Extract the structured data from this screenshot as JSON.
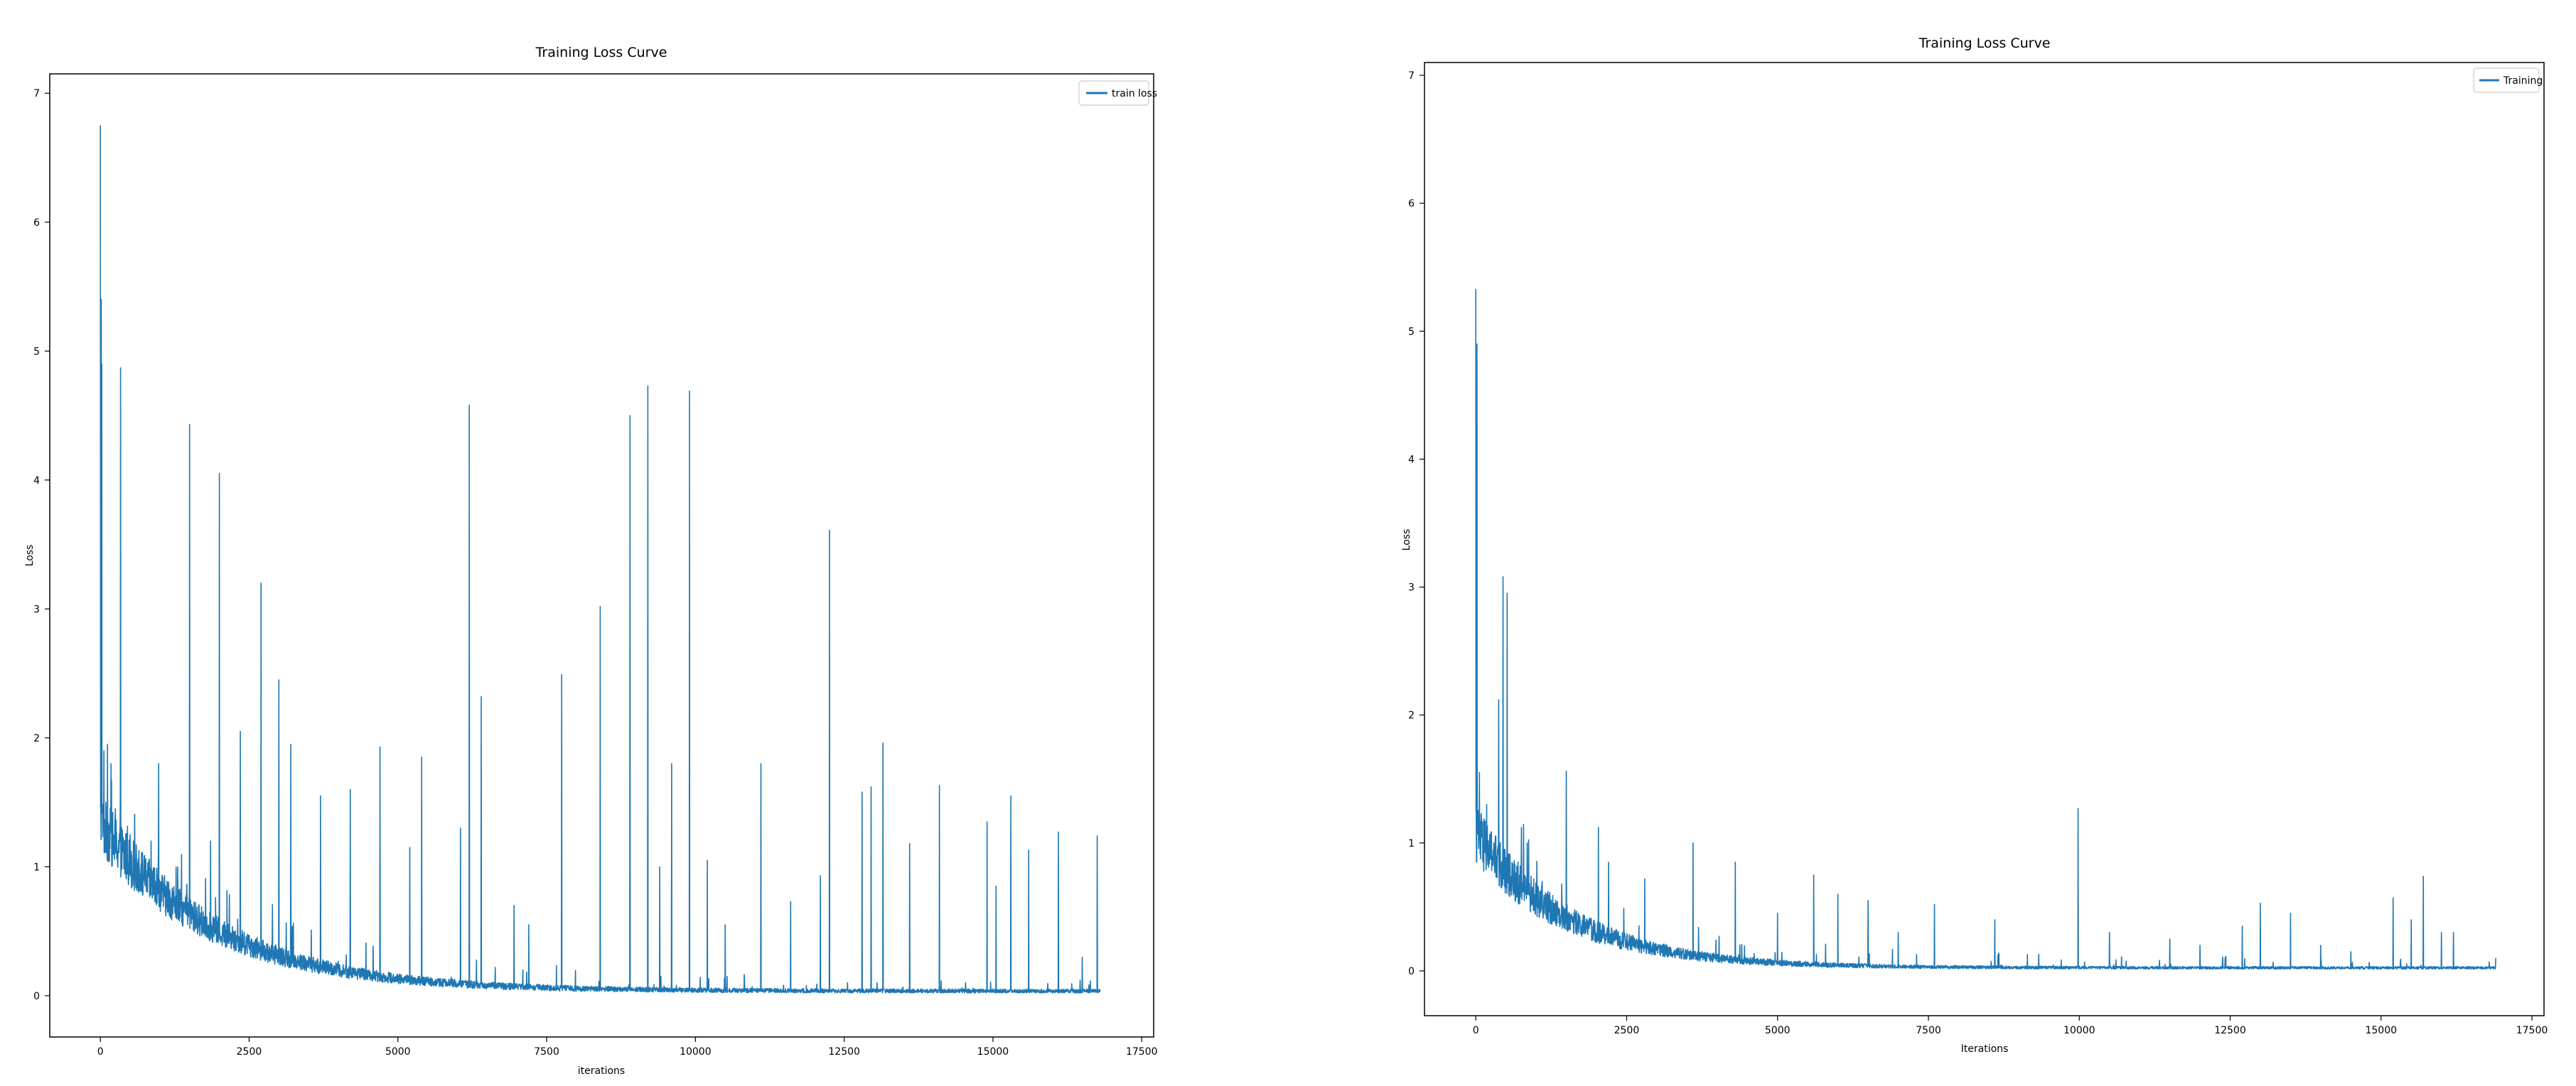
{
  "chart_data": [
    {
      "type": "line",
      "title": "Training Loss Curve",
      "xlabel": "iterations",
      "ylabel": "Loss",
      "xlim": [
        -850,
        17700
      ],
      "ylim": [
        -0.32,
        7.15
      ],
      "xticks": [
        0,
        2500,
        5000,
        7500,
        10000,
        12500,
        15000,
        17500
      ],
      "yticks": [
        0,
        1,
        2,
        3,
        4,
        5,
        6,
        7
      ],
      "legend_position": "upper right",
      "color": "#1f77b4",
      "series": [
        {
          "name": "train loss",
          "n_iterations": 16800,
          "initial_loss": 6.75,
          "decay_tau": 1900,
          "final_loss": 0.03,
          "noise": 0.03,
          "spikes": [
            [
              0,
              6.75
            ],
            [
              15,
              5.4
            ],
            [
              25,
              4.9
            ],
            [
              60,
              1.9
            ],
            [
              120,
              1.95
            ],
            [
              180,
              1.8
            ],
            [
              250,
              1.45
            ],
            [
              340,
              4.87
            ],
            [
              500,
              1.25
            ],
            [
              850,
              1.2
            ],
            [
              980,
              1.8
            ],
            [
              1300,
              1.0
            ],
            [
              1500,
              4.43
            ],
            [
              1850,
              1.2
            ],
            [
              2000,
              4.05
            ],
            [
              2350,
              2.05
            ],
            [
              2700,
              3.2
            ],
            [
              3000,
              2.45
            ],
            [
              3200,
              1.95
            ],
            [
              3700,
              1.55
            ],
            [
              4200,
              1.6
            ],
            [
              4700,
              1.93
            ],
            [
              5200,
              1.15
            ],
            [
              5400,
              1.85
            ],
            [
              6050,
              1.3
            ],
            [
              6200,
              4.58
            ],
            [
              6400,
              2.32
            ],
            [
              6950,
              0.7
            ],
            [
              7200,
              0.55
            ],
            [
              7750,
              2.49
            ],
            [
              8400,
              3.02
            ],
            [
              8900,
              4.5
            ],
            [
              9200,
              4.73
            ],
            [
              9400,
              1.0
            ],
            [
              9600,
              1.8
            ],
            [
              9900,
              4.69
            ],
            [
              10200,
              1.05
            ],
            [
              10500,
              0.55
            ],
            [
              11100,
              1.8
            ],
            [
              11600,
              0.73
            ],
            [
              12100,
              0.93
            ],
            [
              12250,
              3.61
            ],
            [
              12800,
              1.58
            ],
            [
              12950,
              1.62
            ],
            [
              13150,
              1.96
            ],
            [
              13600,
              1.18
            ],
            [
              14100,
              1.63
            ],
            [
              14900,
              1.35
            ],
            [
              15050,
              0.85
            ],
            [
              15300,
              1.55
            ],
            [
              15600,
              1.13
            ],
            [
              16100,
              1.27
            ],
            [
              16500,
              0.3
            ],
            [
              16750,
              1.24
            ]
          ]
        }
      ]
    },
    {
      "type": "line",
      "title": "Training Loss Curve",
      "xlabel": "Iterations",
      "ylabel": "Loss",
      "xlim": [
        -850,
        17700
      ],
      "ylim": [
        -0.35,
        7.1
      ],
      "xticks": [
        0,
        2500,
        5000,
        7500,
        10000,
        12500,
        15000,
        17500
      ],
      "yticks": [
        0,
        1,
        2,
        3,
        4,
        5,
        6,
        7
      ],
      "legend_position": "upper right",
      "color": "#1f77b4",
      "series": [
        {
          "name": "Training",
          "n_iterations": 16900,
          "initial_loss": 5.33,
          "decay_tau": 1500,
          "final_loss": 0.02,
          "noise": 0.02,
          "spikes": [
            [
              0,
              5.33
            ],
            [
              20,
              4.9
            ],
            [
              60,
              1.55
            ],
            [
              180,
              1.3
            ],
            [
              300,
              1.0
            ],
            [
              380,
              2.12
            ],
            [
              450,
              3.08
            ],
            [
              520,
              2.95
            ],
            [
              700,
              0.85
            ],
            [
              850,
              1.0
            ],
            [
              1100,
              0.7
            ],
            [
              1500,
              1.56
            ],
            [
              2030,
              1.12
            ],
            [
              2200,
              0.85
            ],
            [
              2800,
              0.72
            ],
            [
              3600,
              1.0
            ],
            [
              4300,
              0.85
            ],
            [
              5000,
              0.45
            ],
            [
              5600,
              0.75
            ],
            [
              6000,
              0.6
            ],
            [
              6500,
              0.55
            ],
            [
              7000,
              0.3
            ],
            [
              7600,
              0.52
            ],
            [
              8600,
              0.4
            ],
            [
              9980,
              1.27
            ],
            [
              10500,
              0.3
            ],
            [
              11500,
              0.25
            ],
            [
              12000,
              0.2
            ],
            [
              12700,
              0.35
            ],
            [
              13000,
              0.53
            ],
            [
              13500,
              0.45
            ],
            [
              14000,
              0.2
            ],
            [
              14500,
              0.15
            ],
            [
              15200,
              0.57
            ],
            [
              15500,
              0.4
            ],
            [
              15700,
              0.74
            ],
            [
              16000,
              0.3
            ],
            [
              16200,
              0.3
            ],
            [
              16900,
              0.1
            ]
          ]
        }
      ]
    }
  ]
}
